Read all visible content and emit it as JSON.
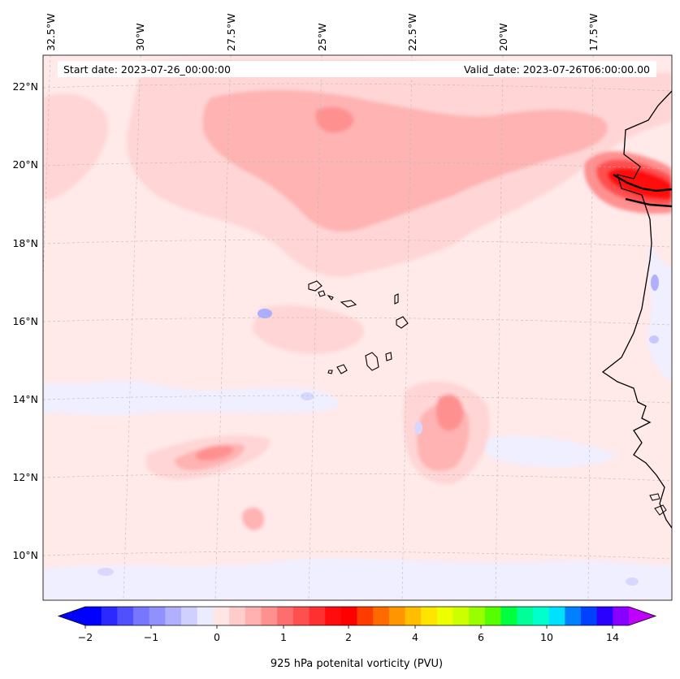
{
  "header": {
    "start_date": "Start date: 2023-07-26_00:00:00",
    "valid_date": "Valid_date: 2023-07-26T06:00:00.00"
  },
  "map": {
    "variable": "925 hPa potenital vorticity (PVU)",
    "lon_labels": [
      "32.5°W",
      "30°W",
      "27.5°W",
      "25°W",
      "22.5°W",
      "20°W",
      "17.5°W"
    ],
    "lat_labels": [
      "22°N",
      "20°N",
      "18°N",
      "16°N",
      "14°N",
      "12°N",
      "10°N"
    ],
    "background_color": "#ffe9e9",
    "features": [
      {
        "name": "strong-pv-max-coast",
        "value": 3.0
      },
      {
        "name": "pv-max-offshore",
        "value": 1.6
      },
      {
        "name": "pv-band-west",
        "value": 1.0
      },
      {
        "name": "negative-pv-patches",
        "value": -0.3
      }
    ]
  },
  "colorbar": {
    "label": "925 hPa potenital vorticity (PVU)",
    "ticks": [
      "−2",
      "−1",
      "0",
      "1",
      "2",
      "4",
      "6",
      "10",
      "14"
    ],
    "colors": [
      "#0000ff",
      "#2a2aff",
      "#5050ff",
      "#7676ff",
      "#9090ff",
      "#b0b0ff",
      "#d0d0ff",
      "#ececff",
      "#ffe6e6",
      "#ffcccc",
      "#ffb0b0",
      "#ff9090",
      "#ff6e6e",
      "#ff5050",
      "#ff3030",
      "#ff0d0d",
      "#ff0000",
      "#ff3c00",
      "#ff6a00",
      "#ff9600",
      "#ffbe00",
      "#ffe400",
      "#eeff00",
      "#ccff00",
      "#99ff00",
      "#55ff00",
      "#00ff3c",
      "#00ff99",
      "#00ffcc",
      "#00e0ff",
      "#0080ff",
      "#0040ff",
      "#2a00ff",
      "#8800ff"
    ],
    "extend_low_color": "#0000ff",
    "extend_high_color": "#c000ff"
  }
}
